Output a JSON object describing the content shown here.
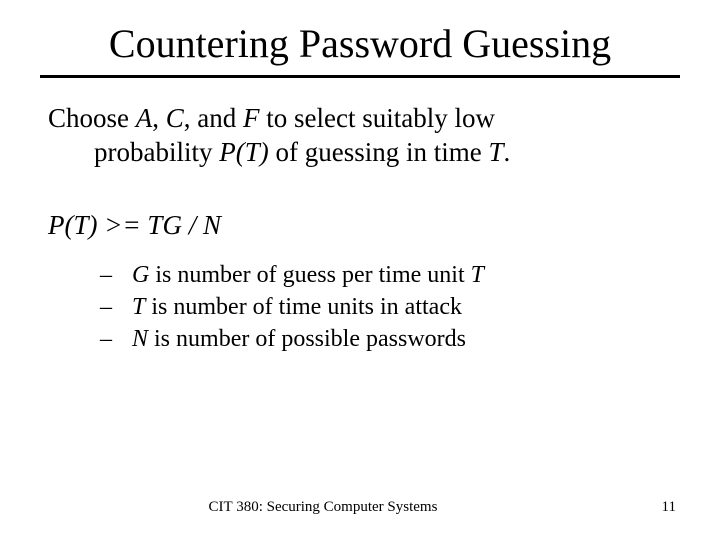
{
  "title": "Countering Password Guessing",
  "intro": {
    "line1_pre": "Choose ",
    "A": "A",
    "comma1": ", ",
    "C": "C",
    "comma2": ", and ",
    "F": "F",
    "line1_post": " to select suitably low",
    "line2_pre": "probability ",
    "PT": "P(T)",
    "line2_mid": " of guessing in time ",
    "T": "T",
    "line2_post": "."
  },
  "formula": "P(T)  >= TG / N",
  "bullets": [
    {
      "var": "G",
      "text": " is number of guess per time unit ",
      "tail": "T"
    },
    {
      "var": "T",
      "text": " is number of time units in attack",
      "tail": ""
    },
    {
      "var": "N",
      "text": " is number of possible passwords",
      "tail": ""
    }
  ],
  "footer": {
    "center": "CIT 380: Securing Computer Systems",
    "page": "11"
  },
  "colors": {
    "background": "#ffffff",
    "text": "#000000",
    "rule": "#000000"
  },
  "fonts": {
    "title_size_pt": 40,
    "body_size_pt": 27,
    "bullet_size_pt": 24,
    "footer_size_pt": 15,
    "family": "Times New Roman"
  }
}
